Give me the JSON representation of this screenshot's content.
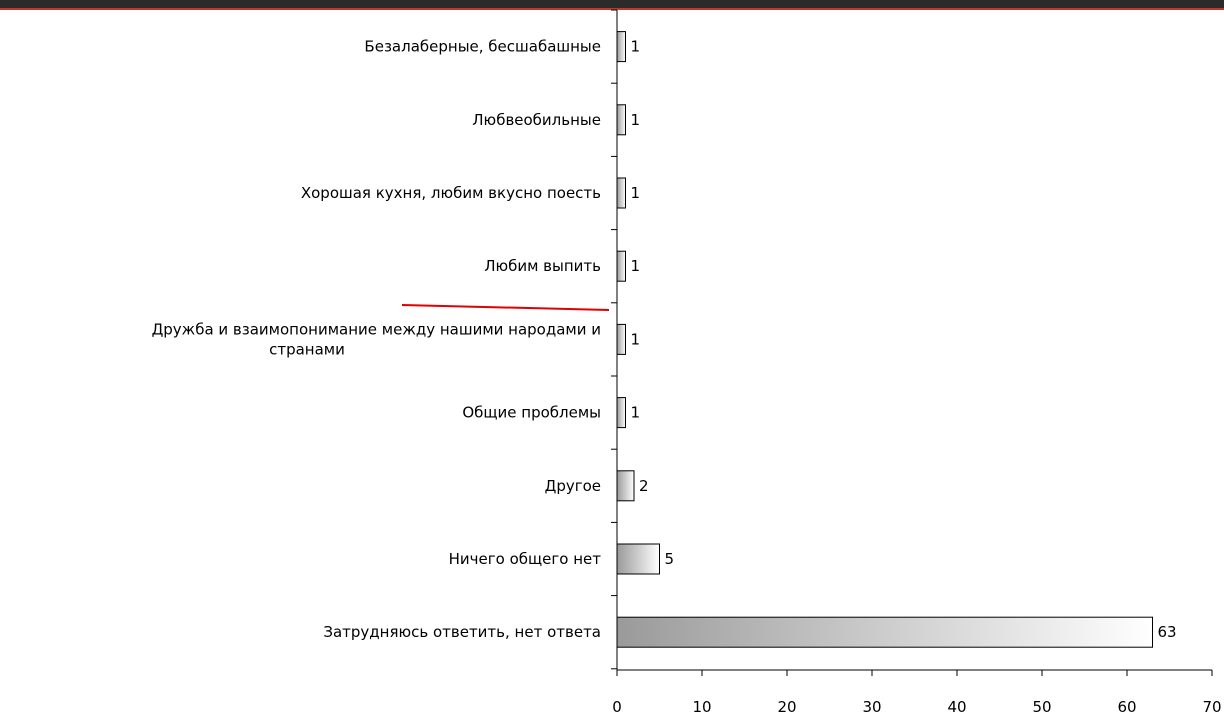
{
  "chart_data": {
    "type": "bar",
    "orientation": "horizontal",
    "categories": [
      "Безалаберные, бесшабашные",
      "Любвеобильные",
      "Хорошая кухня, любим вкусно поесть",
      "Любим выпить",
      "Дружба и взаимопонимание между нашими народами и странами",
      "Общие проблемы",
      "Другое",
      "Ничего общего нет",
      "Затрудняюсь ответить, нет ответа"
    ],
    "category_lines": [
      [
        "Безалаберные, бесшабашные"
      ],
      [
        "Любвеобильные"
      ],
      [
        "Хорошая кухня, любим вкусно поесть"
      ],
      [
        "Любим выпить"
      ],
      [
        "Дружба и взаимопонимание между нашими народами и",
        "странами"
      ],
      [
        "Общие проблемы"
      ],
      [
        "Другое"
      ],
      [
        "Ничего общего нет"
      ],
      [
        "Затрудняюсь ответить, нет ответа"
      ]
    ],
    "values": [
      1,
      1,
      1,
      1,
      1,
      1,
      2,
      5,
      63
    ],
    "value_labels": [
      "1",
      "1",
      "1",
      "1",
      "1",
      "1",
      "2",
      "5",
      "63"
    ],
    "xlim": [
      0,
      70
    ],
    "xticks": [
      "0",
      "10",
      "20",
      "30",
      "40",
      "50",
      "60",
      "70"
    ],
    "grid": false,
    "legend": "none",
    "title": "",
    "xlabel": "",
    "ylabel": ""
  },
  "colors": {
    "top_band": "#2b2b2b",
    "top_band_accent": "#c0392b",
    "bar_dark": "#9a9a9a",
    "bar_light": "#ffffff",
    "bar_stroke": "#000000",
    "axis": "#000000",
    "annotation_line": "#e00000"
  }
}
